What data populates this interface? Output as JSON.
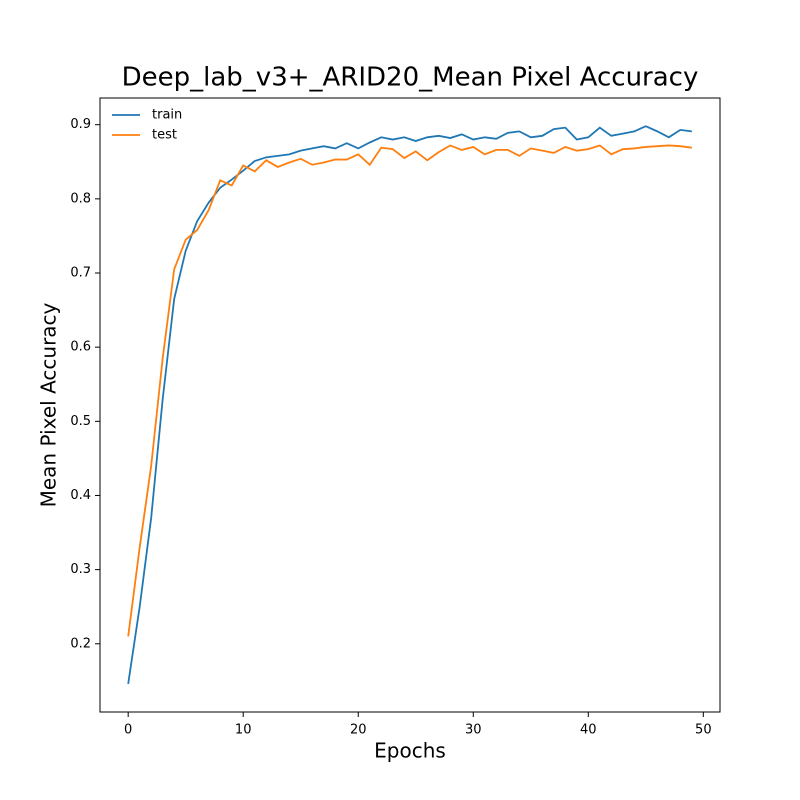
{
  "chart_data": {
    "type": "line",
    "title": "Deep_lab_v3+_ARID20_Mean Pixel Accuracy",
    "x_label": "Epochs",
    "y_label": "Mean Pixel Accuracy",
    "x": [
      0,
      1,
      2,
      3,
      4,
      5,
      6,
      7,
      8,
      9,
      10,
      11,
      12,
      13,
      14,
      15,
      16,
      17,
      18,
      19,
      20,
      21,
      22,
      23,
      24,
      25,
      26,
      27,
      28,
      29,
      30,
      31,
      32,
      33,
      34,
      35,
      36,
      37,
      38,
      39,
      40,
      41,
      42,
      43,
      44,
      45,
      46,
      47,
      48,
      49
    ],
    "series": [
      {
        "name": "train",
        "color": "#1f77b4",
        "values": [
          0.146,
          0.25,
          0.37,
          0.53,
          0.665,
          0.73,
          0.77,
          0.795,
          0.815,
          0.826,
          0.838,
          0.851,
          0.856,
          0.858,
          0.86,
          0.865,
          0.868,
          0.871,
          0.868,
          0.875,
          0.868,
          0.876,
          0.883,
          0.88,
          0.883,
          0.878,
          0.883,
          0.885,
          0.882,
          0.887,
          0.88,
          0.883,
          0.881,
          0.889,
          0.891,
          0.883,
          0.885,
          0.894,
          0.896,
          0.88,
          0.883,
          0.896,
          0.885,
          0.888,
          0.891,
          0.898,
          0.891,
          0.883,
          0.893,
          0.891
        ]
      },
      {
        "name": "test",
        "color": "#ff7f0e",
        "values": [
          0.21,
          0.33,
          0.44,
          0.585,
          0.705,
          0.745,
          0.758,
          0.785,
          0.825,
          0.818,
          0.845,
          0.837,
          0.852,
          0.843,
          0.849,
          0.854,
          0.846,
          0.849,
          0.853,
          0.853,
          0.86,
          0.846,
          0.869,
          0.867,
          0.855,
          0.864,
          0.852,
          0.863,
          0.872,
          0.866,
          0.87,
          0.86,
          0.866,
          0.866,
          0.858,
          0.868,
          0.865,
          0.862,
          0.87,
          0.865,
          0.867,
          0.872,
          0.86,
          0.867,
          0.868,
          0.87,
          0.871,
          0.872,
          0.871,
          0.869
        ]
      }
    ],
    "xlim": [
      -2.45,
      51.45
    ],
    "ylim": [
      0.108,
      0.936
    ],
    "xticks": [
      0,
      10,
      20,
      30,
      40,
      50
    ],
    "yticks": [
      0.2,
      0.3,
      0.4,
      0.5,
      0.6,
      0.7,
      0.8,
      0.9
    ],
    "legend": "upper left",
    "grid": false
  }
}
